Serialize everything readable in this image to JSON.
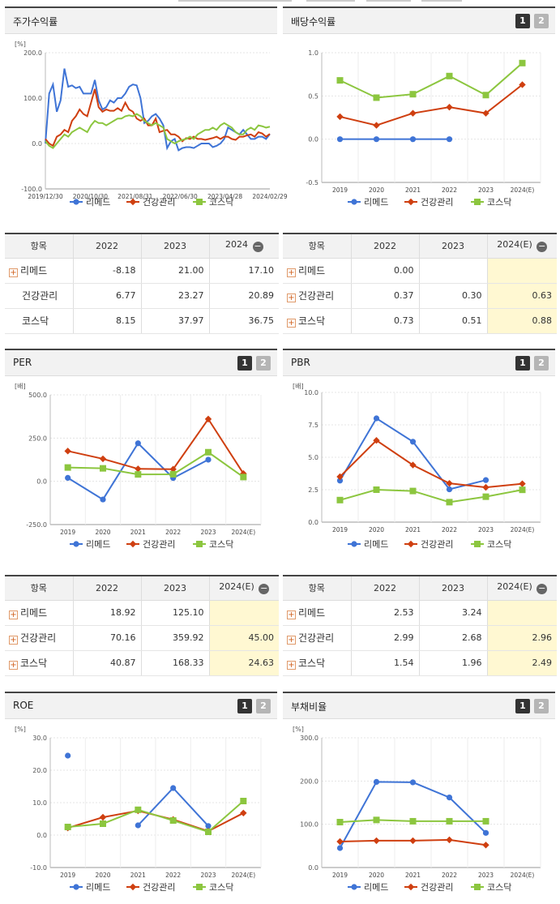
{
  "colors": {
    "remed": "#3f74d6",
    "health": "#cf3f10",
    "kosdaq": "#8cc63f"
  },
  "series_names": [
    "리메드",
    "건강관리",
    "코스닥"
  ],
  "panels": {
    "stock": {
      "title": "주가수익률",
      "unit": "[%]"
    },
    "dividend": {
      "title": "배당수익률",
      "btn1": "1",
      "btn2": "2"
    },
    "per": {
      "title": "PER",
      "unit": "[배]",
      "btn1": "1",
      "btn2": "2"
    },
    "pbr": {
      "title": "PBR",
      "unit": "[배]",
      "btn1": "1",
      "btn2": "2"
    },
    "roe": {
      "title": "ROE",
      "unit": "[%]",
      "btn1": "1",
      "btn2": "2"
    },
    "debt": {
      "title": "부채비율",
      "unit": "[%]",
      "btn1": "1",
      "btn2": "2"
    }
  },
  "tables": {
    "stock": {
      "headers": [
        "항목",
        "2022",
        "2023",
        "2024"
      ],
      "rows": [
        {
          "name": "리메드",
          "values": [
            "-8.18",
            "21.00",
            "17.10"
          ]
        },
        {
          "name": "건강관리",
          "values": [
            "6.77",
            "23.27",
            "20.89"
          ]
        },
        {
          "name": "코스닥",
          "values": [
            "8.15",
            "37.97",
            "36.75"
          ]
        }
      ]
    },
    "dividend": {
      "headers": [
        "항목",
        "2022",
        "2023",
        "2024(E)"
      ],
      "rows": [
        {
          "name": "리메드",
          "values": [
            "0.00",
            "",
            ""
          ]
        },
        {
          "name": "건강관리",
          "values": [
            "0.37",
            "0.30",
            "0.63"
          ]
        },
        {
          "name": "코스닥",
          "values": [
            "0.73",
            "0.51",
            "0.88"
          ]
        }
      ]
    },
    "per": {
      "headers": [
        "항목",
        "2022",
        "2023",
        "2024(E)"
      ],
      "rows": [
        {
          "name": "리메드",
          "values": [
            "18.92",
            "125.10",
            ""
          ]
        },
        {
          "name": "건강관리",
          "values": [
            "70.16",
            "359.92",
            "45.00"
          ]
        },
        {
          "name": "코스닥",
          "values": [
            "40.87",
            "168.33",
            "24.63"
          ]
        }
      ]
    },
    "pbr": {
      "headers": [
        "항목",
        "2022",
        "2023",
        "2024(E)"
      ],
      "rows": [
        {
          "name": "리메드",
          "values": [
            "2.53",
            "3.24",
            ""
          ]
        },
        {
          "name": "건강관리",
          "values": [
            "2.99",
            "2.68",
            "2.96"
          ]
        },
        {
          "name": "코스닥",
          "values": [
            "1.54",
            "1.96",
            "2.49"
          ]
        }
      ]
    }
  },
  "chart_data": [
    {
      "type": "line",
      "title": "주가수익률",
      "ylabel": "[%]",
      "ylim": [
        -100,
        200
      ],
      "yticks": [
        "200.0",
        "100.0",
        "0.0",
        "-100.0"
      ],
      "xticks": [
        "2019/12/30",
        "2020/10/30",
        "2021/08/31",
        "2022/06/30",
        "2023/04/28",
        "2024/02/29"
      ],
      "n_points": 60,
      "series": [
        {
          "name": "리메드",
          "values": [
            0,
            110,
            130,
            70,
            95,
            165,
            125,
            128,
            122,
            125,
            110,
            110,
            110,
            140,
            95,
            75,
            80,
            95,
            90,
            100,
            100,
            110,
            125,
            130,
            128,
            100,
            45,
            50,
            60,
            65,
            55,
            40,
            -10,
            5,
            10,
            -15,
            -10,
            -8,
            -8,
            -10,
            -5,
            0,
            0,
            0,
            -8,
            -5,
            0,
            10,
            35,
            30,
            25,
            20,
            30,
            20,
            10,
            10,
            15,
            15,
            10,
            21
          ]
        },
        {
          "name": "건강관리",
          "values": [
            10,
            0,
            -5,
            15,
            20,
            30,
            25,
            50,
            60,
            75,
            65,
            60,
            90,
            120,
            80,
            70,
            75,
            72,
            72,
            78,
            72,
            90,
            75,
            70,
            55,
            50,
            55,
            40,
            40,
            55,
            25,
            28,
            30,
            20,
            20,
            15,
            5,
            12,
            10,
            15,
            10,
            10,
            8,
            10,
            12,
            15,
            10,
            15,
            15,
            10,
            8,
            15,
            15,
            18,
            20,
            15,
            25,
            22,
            15,
            21
          ]
        },
        {
          "name": "코스닥",
          "values": [
            5,
            -5,
            -10,
            0,
            10,
            20,
            15,
            25,
            30,
            35,
            30,
            25,
            40,
            50,
            45,
            45,
            40,
            45,
            50,
            55,
            55,
            60,
            62,
            60,
            65,
            60,
            50,
            45,
            40,
            45,
            40,
            35,
            10,
            5,
            0,
            5,
            8,
            10,
            15,
            10,
            20,
            25,
            30,
            30,
            35,
            30,
            40,
            45,
            40,
            35,
            25,
            20,
            20,
            30,
            35,
            30,
            40,
            38,
            35,
            37
          ]
        }
      ]
    },
    {
      "type": "line",
      "title": "배당수익률",
      "ylim": [
        -0.5,
        1.0
      ],
      "yticks": [
        "1.0",
        "0.5",
        "0.0",
        "-0.5"
      ],
      "categories": [
        "2019",
        "2020",
        "2021",
        "2022",
        "2023",
        "2024(E)"
      ],
      "series": [
        {
          "name": "리메드",
          "values": [
            0.0,
            0.0,
            0.0,
            0.0,
            null,
            null
          ]
        },
        {
          "name": "건강관리",
          "values": [
            0.26,
            0.16,
            0.3,
            0.37,
            0.3,
            0.63
          ]
        },
        {
          "name": "코스닥",
          "values": [
            0.68,
            0.48,
            0.52,
            0.73,
            0.51,
            0.88
          ]
        }
      ]
    },
    {
      "type": "line",
      "title": "PER",
      "ylabel": "[배]",
      "ylim": [
        -250,
        500
      ],
      "yticks": [
        "500.0",
        "250.0",
        "0.0",
        "-250.0"
      ],
      "categories": [
        "2019",
        "2020",
        "2021",
        "2022",
        "2023",
        "2024(E)"
      ],
      "series": [
        {
          "name": "리메드",
          "values": [
            20,
            -105,
            220,
            18.92,
            125.1,
            null
          ]
        },
        {
          "name": "건강관리",
          "values": [
            175,
            130,
            72,
            70.16,
            359.92,
            45.0
          ]
        },
        {
          "name": "코스닥",
          "values": [
            80,
            75,
            40,
            40.87,
            168.33,
            24.63
          ]
        }
      ]
    },
    {
      "type": "line",
      "title": "PBR",
      "ylabel": "[배]",
      "ylim": [
        0,
        10
      ],
      "yticks": [
        "10.0",
        "7.5",
        "5.0",
        "2.5",
        "0.0"
      ],
      "categories": [
        "2019",
        "2020",
        "2021",
        "2022",
        "2023",
        "2024(E)"
      ],
      "series": [
        {
          "name": "리메드",
          "values": [
            3.2,
            8.0,
            6.2,
            2.53,
            3.24,
            null
          ]
        },
        {
          "name": "건강관리",
          "values": [
            3.5,
            6.3,
            4.4,
            2.99,
            2.68,
            2.96
          ]
        },
        {
          "name": "코스닥",
          "values": [
            1.7,
            2.5,
            2.4,
            1.54,
            1.96,
            2.49
          ]
        }
      ]
    },
    {
      "type": "line",
      "title": "ROE",
      "ylabel": "[%]",
      "ylim": [
        -10,
        30
      ],
      "yticks": [
        "30.0",
        "20.0",
        "10.0",
        "0.0",
        "-10.0"
      ],
      "categories": [
        "2019",
        "2020",
        "2021",
        "2022",
        "2023",
        "2024(E)"
      ],
      "series": [
        {
          "name": "리메드",
          "values": [
            24.5,
            null,
            3.0,
            14.5,
            2.8,
            null
          ]
        },
        {
          "name": "건강관리",
          "values": [
            2.2,
            5.5,
            7.5,
            4.8,
            1.2,
            6.8
          ]
        },
        {
          "name": "코스닥",
          "values": [
            2.5,
            3.5,
            7.8,
            4.5,
            1.0,
            10.5
          ]
        }
      ]
    },
    {
      "type": "line",
      "title": "부채비율",
      "ylabel": "[%]",
      "ylim": [
        0,
        300
      ],
      "yticks": [
        "300.0",
        "200.0",
        "100.0",
        "0.0"
      ],
      "categories": [
        "2019",
        "2020",
        "2021",
        "2022",
        "2023",
        "2024(E)"
      ],
      "series": [
        {
          "name": "리메드",
          "values": [
            45,
            198,
            197,
            162,
            80,
            null
          ]
        },
        {
          "name": "건강관리",
          "values": [
            60,
            62,
            62,
            64,
            52,
            null
          ]
        },
        {
          "name": "코스닥",
          "values": [
            105,
            110,
            107,
            107,
            107,
            null
          ]
        }
      ]
    }
  ]
}
